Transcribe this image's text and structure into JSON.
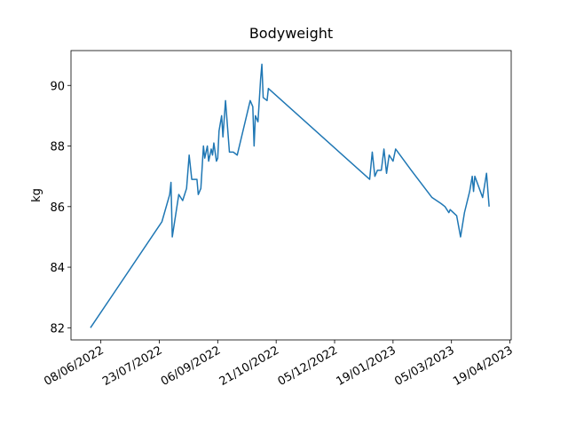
{
  "chart_data": {
    "type": "line",
    "title": "Bodyweight",
    "y_label": "kg",
    "x": [
      "2022-05-31",
      "2022-07-25",
      "2022-07-31",
      "2022-08-01",
      "2022-08-02",
      "2022-08-07",
      "2022-08-10",
      "2022-08-13",
      "2022-08-15",
      "2022-08-17",
      "2022-08-21",
      "2022-08-22",
      "2022-08-24",
      "2022-08-26",
      "2022-08-27",
      "2022-08-29",
      "2022-08-30",
      "2022-09-01",
      "2022-09-02",
      "2022-09-03",
      "2022-09-05",
      "2022-09-06",
      "2022-09-07",
      "2022-09-09",
      "2022-09-10",
      "2022-09-12",
      "2022-09-15",
      "2022-09-18",
      "2022-09-21",
      "2022-10-01",
      "2022-10-03",
      "2022-10-04",
      "2022-10-05",
      "2022-10-07",
      "2022-10-09",
      "2022-10-10",
      "2022-10-11",
      "2022-10-14",
      "2022-10-15",
      "2023-01-01",
      "2023-01-03",
      "2023-01-05",
      "2023-01-07",
      "2023-01-10",
      "2023-01-12",
      "2023-01-14",
      "2023-01-16",
      "2023-01-19",
      "2023-01-21",
      "2023-02-02",
      "2023-02-18",
      "2023-02-25",
      "2023-02-28",
      "2023-03-03",
      "2023-03-04",
      "2023-03-09",
      "2023-03-12",
      "2023-03-15",
      "2023-03-19",
      "2023-03-21",
      "2023-03-22",
      "2023-03-23",
      "2023-03-29",
      "2023-04-01",
      "2023-04-03"
    ],
    "series": [
      {
        "name": "Bodyweight",
        "color": "#1f77b4",
        "values": [
          82.0,
          85.5,
          86.4,
          86.8,
          85.0,
          86.4,
          86.2,
          86.6,
          87.7,
          86.9,
          86.9,
          86.4,
          86.6,
          88.0,
          87.6,
          88.0,
          87.5,
          87.9,
          87.7,
          88.1,
          87.5,
          87.6,
          88.5,
          89.0,
          88.3,
          89.5,
          87.8,
          87.8,
          87.7,
          89.5,
          89.3,
          88.0,
          89.0,
          88.8,
          90.2,
          90.7,
          89.6,
          89.5,
          89.9,
          86.9,
          87.8,
          87.0,
          87.2,
          87.2,
          87.9,
          87.1,
          87.7,
          87.5,
          87.9,
          87.2,
          86.3,
          86.1,
          86.0,
          85.8,
          85.9,
          85.7,
          85.0,
          85.8,
          86.5,
          87.0,
          86.5,
          87.0,
          86.3,
          87.1,
          86.0
        ]
      }
    ],
    "xlim": [
      "2022-05-16",
      "2023-04-20"
    ],
    "xticks": [
      {
        "value": "2022-06-08",
        "label": "08/06/2022"
      },
      {
        "value": "2022-07-23",
        "label": "23/07/2022"
      },
      {
        "value": "2022-09-06",
        "label": "06/09/2022"
      },
      {
        "value": "2022-10-21",
        "label": "21/10/2022"
      },
      {
        "value": "2022-12-05",
        "label": "05/12/2022"
      },
      {
        "value": "2023-01-19",
        "label": "19/01/2023"
      },
      {
        "value": "2023-03-05",
        "label": "05/03/2023"
      },
      {
        "value": "2023-04-19",
        "label": "19/04/2023"
      }
    ],
    "ylim": [
      81.6,
      91.15
    ],
    "yticks": [
      82,
      84,
      86,
      88,
      90
    ]
  }
}
